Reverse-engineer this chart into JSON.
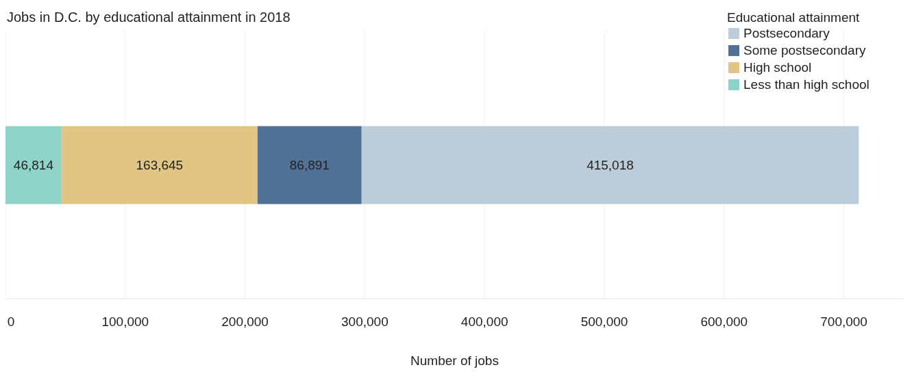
{
  "chart_data": {
    "type": "bar",
    "orientation": "horizontal",
    "stacked": true,
    "title": "Jobs in D.C. by educational attainment in 2018",
    "xlabel": "Number of jobs",
    "legend_title": "Educational attainment",
    "legend": "top right",
    "grid": "x",
    "categories": [
      null
    ],
    "series": [
      {
        "name": "Less than high school",
        "color": "#8dd3c7",
        "values": [
          46814
        ],
        "value_labels": [
          "46,814"
        ]
      },
      {
        "name": "High school",
        "color": "#e0c584",
        "values": [
          163645
        ],
        "value_labels": [
          "163,645"
        ]
      },
      {
        "name": "Some postsecondary",
        "color": "#517196",
        "values": [
          86891
        ],
        "value_labels": [
          "86,891"
        ]
      },
      {
        "name": "Postsecondary",
        "color": "#bccdd9",
        "values": [
          415018
        ],
        "value_labels": [
          "415,018"
        ]
      }
    ],
    "xlim": [
      0,
      750000
    ],
    "xticks": [
      {
        "value": 0,
        "label": "0"
      },
      {
        "value": 100000,
        "label": "100,000"
      },
      {
        "value": 200000,
        "label": "200,000"
      },
      {
        "value": 300000,
        "label": "300,000"
      },
      {
        "value": 400000,
        "label": "400,000"
      },
      {
        "value": 500000,
        "label": "500,000"
      },
      {
        "value": 600000,
        "label": "600,000"
      },
      {
        "value": 700000,
        "label": "700,000"
      }
    ]
  }
}
